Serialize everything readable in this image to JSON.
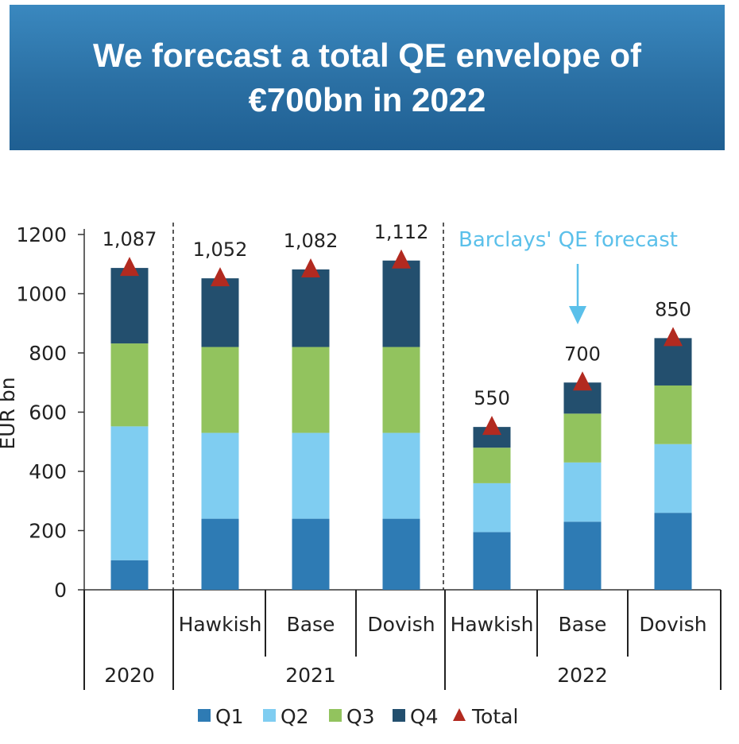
{
  "header": {
    "title": "We forecast a total QE envelope of €700bn in 2022"
  },
  "chart_data": {
    "type": "bar",
    "stacked": true,
    "ylabel": "EUR bn",
    "ylim": [
      0,
      1200
    ],
    "yticks": [
      0,
      200,
      400,
      600,
      800,
      1000,
      1200
    ],
    "categories": [
      {
        "year": "2020",
        "scenario": ""
      },
      {
        "year": "2021",
        "scenario": "Hawkish"
      },
      {
        "year": "2021",
        "scenario": "Base"
      },
      {
        "year": "2021",
        "scenario": "Dovish"
      },
      {
        "year": "2022",
        "scenario": "Hawkish"
      },
      {
        "year": "2022",
        "scenario": "Base"
      },
      {
        "year": "2022",
        "scenario": "Dovish"
      }
    ],
    "year_groups": [
      "2020",
      "2021",
      "2022"
    ],
    "series": [
      {
        "name": "Q1",
        "color": "#2e7bb4",
        "values": [
          100,
          240,
          240,
          240,
          195,
          230,
          260
        ]
      },
      {
        "name": "Q2",
        "color": "#7fcdf1",
        "values": [
          452,
          290,
          290,
          290,
          165,
          200,
          232
        ]
      },
      {
        "name": "Q3",
        "color": "#92c35e",
        "values": [
          280,
          290,
          290,
          290,
          120,
          165,
          198
        ]
      },
      {
        "name": "Q4",
        "color": "#234f6e",
        "values": [
          255,
          232,
          262,
          292,
          70,
          105,
          160
        ]
      }
    ],
    "totals": {
      "name": "Total",
      "color": "#b22a20",
      "values": [
        1087,
        1052,
        1082,
        1112,
        550,
        700,
        850
      ],
      "labels": [
        "1,087",
        "1,052",
        "1,082",
        "1,112",
        "550",
        "700",
        "850"
      ]
    },
    "annotation": {
      "text": "Barclays' QE forecast",
      "target_category_index": 5
    },
    "legend": [
      "Q1",
      "Q2",
      "Q3",
      "Q4",
      "Total"
    ],
    "legend_position": "bottom"
  }
}
